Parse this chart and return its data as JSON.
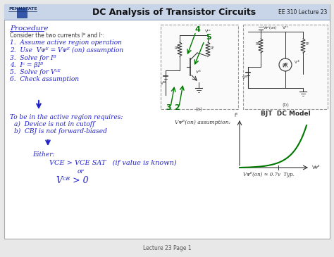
{
  "title": "DC Analysis of Transistor Circuits",
  "course": "EE 310 Lecture 23",
  "bg_outer": "#e8e8e8",
  "slide_bg": "#ffffff",
  "header_bg": "#c8d4e8",
  "border_color": "#aaaaaa",
  "blue": "#2222cc",
  "dark": "#333333",
  "green": "#007700",
  "footer": "Lecture 23 Page 1",
  "bjt_label": "BJT  DC Model",
  "vbe_assumption": "Vᴪᴱ(on) assumption:",
  "vbe_value": "Vᴪᴱ(on) ≈ 0.7v  Typ."
}
